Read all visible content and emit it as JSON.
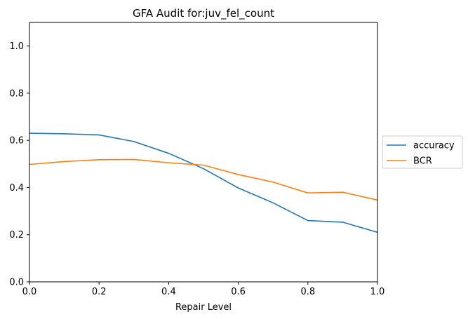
{
  "chart_data": {
    "type": "line",
    "title": "GFA Audit for:juv_fel_count",
    "xlabel": "Repair Level",
    "ylabel": "",
    "xlim": [
      0.0,
      1.0
    ],
    "ylim": [
      0.0,
      1.1
    ],
    "xticks": [
      "0.0",
      "0.2",
      "0.4",
      "0.6",
      "0.8",
      "1.0"
    ],
    "yticks": [
      "0.0",
      "0.2",
      "0.4",
      "0.6",
      "0.8",
      "1.0"
    ],
    "grid": false,
    "legend_position": "outside right, center",
    "x": [
      0.0,
      0.1,
      0.2,
      0.3,
      0.4,
      0.5,
      0.6,
      0.7,
      0.8,
      0.9,
      1.0
    ],
    "series": [
      {
        "name": "accuracy",
        "color": "#1f77b4",
        "values": [
          0.63,
          0.628,
          0.623,
          0.595,
          0.545,
          0.48,
          0.398,
          0.335,
          0.26,
          0.253,
          0.21
        ]
      },
      {
        "name": "BCR",
        "color": "#ff7f0e",
        "values": [
          0.498,
          0.51,
          0.518,
          0.519,
          0.505,
          0.495,
          0.455,
          0.423,
          0.377,
          0.38,
          0.347
        ]
      }
    ]
  }
}
